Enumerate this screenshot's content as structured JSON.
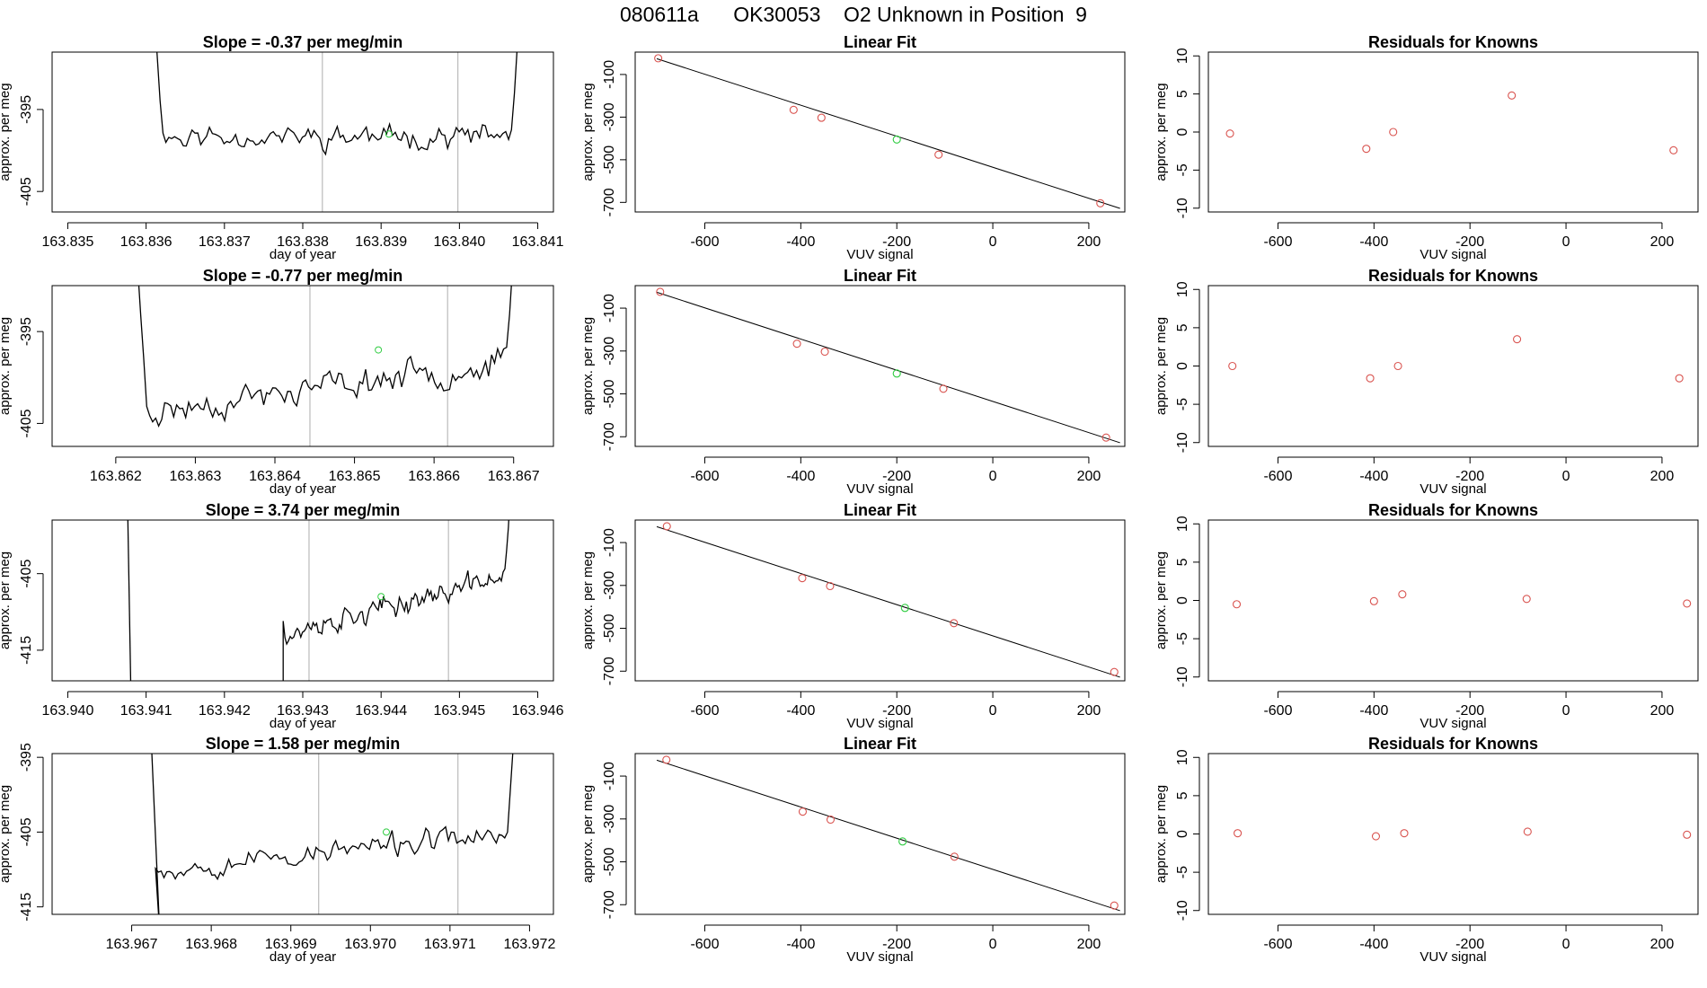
{
  "page_title": "080611a      OK30053    O2 Unknown in Position  9",
  "colors": {
    "line": "#000000",
    "point_red": "#d9534f",
    "point_green": "#2ecc40",
    "vline": "#bbbbbb",
    "axis": "#000000"
  },
  "chart_data": [
    {
      "type": "line",
      "row": 0,
      "col": 0,
      "title": "Slope =  -0.37  per meg/min",
      "xlabel": "day of year",
      "ylabel": "approx. per meg",
      "xlim": [
        163.8348,
        163.8412
      ],
      "ylim": [
        -407.5,
        -388.0
      ],
      "xticks": [
        163.835,
        163.836,
        163.837,
        163.838,
        163.839,
        163.84,
        163.841
      ],
      "xtick_labels": [
        "163.835",
        "163.836",
        "163.837",
        "163.838",
        "163.839",
        "163.840",
        "163.841"
      ],
      "yticks": [
        -395,
        -405
      ],
      "ytick_labels": [
        "-395",
        "-405"
      ],
      "vlines": [
        163.83825,
        163.83998
      ],
      "x_start": 163.83603,
      "x_end": 163.84085,
      "base": -398.3,
      "amp": 1.6,
      "trend": 0.0,
      "edge": "up-up",
      "seed": 11,
      "highlight_point": {
        "x": 163.8391,
        "y": -398.0
      }
    },
    {
      "type": "scatter_line",
      "row": 0,
      "col": 1,
      "title": "Linear Fit",
      "xlabel": "VUV signal",
      "ylabel": "approx. per meg",
      "xlim": [
        -745,
        275
      ],
      "ylim": [
        -745,
        5
      ],
      "xticks": [
        -600,
        -400,
        -200,
        0,
        200
      ],
      "xtick_labels": [
        "-600",
        "-400",
        "-200",
        "0",
        "200"
      ],
      "yticks": [
        -100,
        -300,
        -500,
        -700
      ],
      "ytick_labels": [
        "-100",
        "-300",
        "-500",
        "-700"
      ],
      "line": {
        "x": [
          -700,
          265
        ],
        "y": [
          -26,
          -728
        ]
      },
      "points": {
        "x": [
          -697,
          -415,
          -357,
          -113,
          224
        ],
        "y": [
          -24,
          -266,
          -303,
          -476,
          -704
        ]
      },
      "highlight_point": {
        "x": -200,
        "y": -405
      }
    },
    {
      "type": "scatter",
      "row": 0,
      "col": 2,
      "title": "Residuals for Knowns",
      "xlabel": "VUV signal",
      "ylabel": "approx. per meg",
      "xlim": [
        -745,
        275
      ],
      "ylim": [
        -10.5,
        10.5
      ],
      "xticks": [
        -600,
        -400,
        -200,
        0,
        200
      ],
      "xtick_labels": [
        "-600",
        "-400",
        "-200",
        "0",
        "200"
      ],
      "yticks": [
        10,
        5,
        0,
        -5,
        -10
      ],
      "ytick_labels": [
        "10",
        "5",
        "0",
        "-5",
        "-10"
      ],
      "points": {
        "x": [
          -700,
          -416,
          -360,
          -113,
          224
        ],
        "y": [
          -0.2,
          -2.2,
          0.0,
          4.8,
          -2.4
        ]
      }
    },
    {
      "type": "line",
      "row": 1,
      "col": 0,
      "title": "Slope =  -0.77  per meg/min",
      "xlabel": "day of year",
      "ylabel": "approx. per meg",
      "xlim": [
        163.8612,
        163.8675
      ],
      "ylim": [
        -407.5,
        -390.0
      ],
      "xticks": [
        163.862,
        163.863,
        163.864,
        163.865,
        163.866,
        163.867
      ],
      "xtick_labels": [
        "163.862",
        "163.863",
        "163.864",
        "163.865",
        "163.866",
        "163.867"
      ],
      "yticks": [
        -395,
        -405
      ],
      "ytick_labels": [
        "-395",
        "-405"
      ],
      "vlines": [
        163.86444,
        163.86617
      ],
      "x_start": 163.8622,
      "x_end": 163.8671,
      "base": -401.0,
      "amp": 1.8,
      "trend": 6.0,
      "edge": "up-up",
      "seed": 23,
      "highlight_point": {
        "x": 163.8653,
        "y": -397.0
      }
    },
    {
      "type": "scatter_line",
      "row": 1,
      "col": 1,
      "title": "Linear Fit",
      "xlabel": "VUV signal",
      "ylabel": "approx. per meg",
      "xlim": [
        -745,
        275
      ],
      "ylim": [
        -745,
        5
      ],
      "xticks": [
        -600,
        -400,
        -200,
        0,
        200
      ],
      "xtick_labels": [
        "-600",
        "-400",
        "-200",
        "0",
        "200"
      ],
      "yticks": [
        -100,
        -300,
        -500,
        -700
      ],
      "ytick_labels": [
        "-100",
        "-300",
        "-500",
        "-700"
      ],
      "line": {
        "x": [
          -700,
          265
        ],
        "y": [
          -26,
          -728
        ]
      },
      "points": {
        "x": [
          -693,
          -408,
          -350,
          -103,
          236
        ],
        "y": [
          -24,
          -266,
          -303,
          -476,
          -704
        ]
      },
      "highlight_point": {
        "x": -200,
        "y": -405
      }
    },
    {
      "type": "scatter",
      "row": 1,
      "col": 2,
      "title": "Residuals for Knowns",
      "xlabel": "VUV signal",
      "ylabel": "approx. per meg",
      "xlim": [
        -745,
        275
      ],
      "ylim": [
        -10.5,
        10.5
      ],
      "xticks": [
        -600,
        -400,
        -200,
        0,
        200
      ],
      "xtick_labels": [
        "-600",
        "-400",
        "-200",
        "0",
        "200"
      ],
      "yticks": [
        10,
        5,
        0,
        -5,
        -10
      ],
      "ytick_labels": [
        "10",
        "5",
        "0",
        "-5",
        "-10"
      ],
      "points": {
        "x": [
          -695,
          -408,
          -350,
          -102,
          236
        ],
        "y": [
          0.0,
          -1.6,
          0.0,
          3.5,
          -1.6
        ]
      }
    },
    {
      "type": "line",
      "row": 2,
      "col": 0,
      "title": "Slope =  3.74  per meg/min",
      "xlabel": "day of year",
      "ylabel": "approx. per meg",
      "xlim": [
        163.9398,
        163.9462
      ],
      "ylim": [
        -419.0,
        -398.0
      ],
      "xticks": [
        163.94,
        163.941,
        163.942,
        163.943,
        163.944,
        163.945,
        163.946
      ],
      "xtick_labels": [
        "163.940",
        "163.941",
        "163.942",
        "163.943",
        "163.944",
        "163.945",
        "163.946"
      ],
      "yticks": [
        -405,
        -415
      ],
      "ytick_labels": [
        "-405",
        "-415"
      ],
      "vlines": [
        163.94308,
        163.94486
      ],
      "x_start": 163.94275,
      "x_end": 163.94567,
      "base": -409.0,
      "amp": 1.6,
      "trend": 8.0,
      "edge": "left-drop",
      "seed": 37,
      "highlight_point": {
        "x": 163.944,
        "y": -408.0
      }
    },
    {
      "type": "scatter_line",
      "row": 2,
      "col": 1,
      "title": "Linear Fit",
      "xlabel": "VUV signal",
      "ylabel": "approx. per meg",
      "xlim": [
        -745,
        275
      ],
      "ylim": [
        -745,
        5
      ],
      "xticks": [
        -600,
        -400,
        -200,
        0,
        200
      ],
      "xtick_labels": [
        "-600",
        "-400",
        "-200",
        "0",
        "200"
      ],
      "yticks": [
        -100,
        -300,
        -500,
        -700
      ],
      "ytick_labels": [
        "-100",
        "-300",
        "-500",
        "-700"
      ],
      "line": {
        "x": [
          -700,
          265
        ],
        "y": [
          -26,
          -728
        ]
      },
      "points": {
        "x": [
          -679,
          -397,
          -339,
          -81,
          253
        ],
        "y": [
          -24,
          -266,
          -303,
          -476,
          -704
        ]
      },
      "highlight_point": {
        "x": -183,
        "y": -405
      }
    },
    {
      "type": "scatter",
      "row": 2,
      "col": 2,
      "title": "Residuals for Knowns",
      "xlabel": "VUV signal",
      "ylabel": "approx. per meg",
      "xlim": [
        -745,
        275
      ],
      "ylim": [
        -10.5,
        10.5
      ],
      "xticks": [
        -600,
        -400,
        -200,
        0,
        200
      ],
      "xtick_labels": [
        "-600",
        "-400",
        "-200",
        "0",
        "200"
      ],
      "yticks": [
        10,
        5,
        0,
        -5,
        -10
      ],
      "ytick_labels": [
        "10",
        "5",
        "0",
        "-5",
        "-10"
      ],
      "points": {
        "x": [
          -686,
          -400,
          -341,
          -82,
          252
        ],
        "y": [
          -0.5,
          -0.1,
          0.8,
          0.2,
          -0.4
        ]
      }
    },
    {
      "type": "line",
      "row": 3,
      "col": 0,
      "title": "Slope =  1.58  per meg/min",
      "xlabel": "day of year",
      "ylabel": "approx. per meg",
      "xlim": [
        163.966,
        163.9723
      ],
      "ylim": [
        -416.0,
        -394.5
      ],
      "xticks": [
        163.967,
        163.968,
        163.969,
        163.97,
        163.971,
        163.972
      ],
      "xtick_labels": [
        "163.967",
        "163.968",
        "163.969",
        "163.970",
        "163.971",
        "163.972"
      ],
      "yticks": [
        -395,
        -405,
        -415
      ],
      "ytick_labels": [
        "-395",
        "-405",
        "-415"
      ],
      "vlines": [
        163.96935,
        163.9711
      ],
      "x_start": 163.9673,
      "x_end": 163.9719,
      "base": -407.5,
      "amp": 1.7,
      "trend": 5.0,
      "edge": "down-up",
      "seed": 53,
      "highlight_point": {
        "x": 163.9702,
        "y": -405.0
      }
    },
    {
      "type": "scatter_line",
      "row": 3,
      "col": 1,
      "title": "Linear Fit",
      "xlabel": "VUV signal",
      "ylabel": "approx. per meg",
      "xlim": [
        -745,
        275
      ],
      "ylim": [
        -745,
        5
      ],
      "xticks": [
        -600,
        -400,
        -200,
        0,
        200
      ],
      "xtick_labels": [
        "-600",
        "-400",
        "-200",
        "0",
        "200"
      ],
      "yticks": [
        -100,
        -300,
        -500,
        -700
      ],
      "ytick_labels": [
        "-100",
        "-300",
        "-500",
        "-700"
      ],
      "line": {
        "x": [
          -700,
          265
        ],
        "y": [
          -26,
          -728
        ]
      },
      "points": {
        "x": [
          -680,
          -396,
          -338,
          -80,
          253
        ],
        "y": [
          -24,
          -266,
          -303,
          -476,
          -704
        ]
      },
      "highlight_point": {
        "x": -188,
        "y": -405
      }
    },
    {
      "type": "scatter",
      "row": 3,
      "col": 2,
      "title": "Residuals for Knowns",
      "xlabel": "VUV signal",
      "ylabel": "approx. per meg",
      "xlim": [
        -745,
        275
      ],
      "ylim": [
        -10.5,
        10.5
      ],
      "xticks": [
        -600,
        -400,
        -200,
        0,
        200
      ],
      "xtick_labels": [
        "-600",
        "-400",
        "-200",
        "0",
        "200"
      ],
      "yticks": [
        10,
        5,
        0,
        -5,
        -10
      ],
      "ytick_labels": [
        "10",
        "5",
        "0",
        "-5",
        "-10"
      ],
      "points": {
        "x": [
          -684,
          -396,
          -337,
          -80,
          252
        ],
        "y": [
          0.1,
          -0.3,
          0.1,
          0.3,
          -0.1
        ]
      }
    }
  ]
}
